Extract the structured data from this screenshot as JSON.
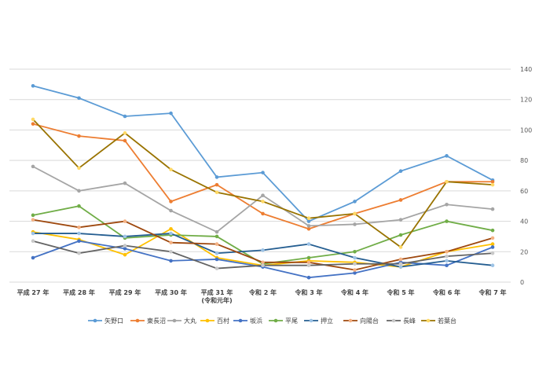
{
  "chart_data": {
    "type": "line",
    "title": "",
    "xlabel": "",
    "ylabel": "",
    "categories": [
      [
        "平成 27 年"
      ],
      [
        "平成 28 年"
      ],
      [
        "平成 29 年"
      ],
      [
        "平成 30 年"
      ],
      [
        "平成 31 年",
        "(令和元年)"
      ],
      [
        "令和 2 年"
      ],
      [
        "令和 3 年"
      ],
      [
        "令和 4 年"
      ],
      [
        "令和 5 年"
      ],
      [
        "令和 6 年"
      ],
      [
        "令和 7 年"
      ]
    ],
    "ylim": [
      0,
      140
    ],
    "yticks": [
      0,
      20,
      40,
      60,
      80,
      100,
      120,
      140
    ],
    "grid": true,
    "legend": "bottom",
    "series": [
      {
        "name": "矢野口",
        "color": "#5B9BD5",
        "marker": "#5B9BD5",
        "values": [
          129,
          121,
          109,
          111,
          69,
          72,
          40,
          53,
          73,
          83,
          67
        ]
      },
      {
        "name": "東長沼",
        "color": "#ED7D31",
        "marker": "#ED7D31",
        "values": [
          104,
          96,
          93,
          53,
          64,
          45,
          35,
          45,
          54,
          66,
          66
        ]
      },
      {
        "name": "大丸",
        "color": "#A5A5A5",
        "marker": "#A5A5A5",
        "values": [
          76,
          60,
          65,
          47,
          33,
          57,
          37,
          38,
          41,
          51,
          48
        ]
      },
      {
        "name": "百村",
        "color": "#FFC000",
        "marker": "#FFC000",
        "values": [
          33,
          28,
          18,
          35,
          16,
          11,
          14,
          13,
          10,
          20,
          25
        ]
      },
      {
        "name": "坂浜",
        "color": "#4472C4",
        "marker": "#4472C4",
        "values": [
          16,
          27,
          22,
          14,
          15,
          10,
          3,
          6,
          13,
          11,
          23
        ]
      },
      {
        "name": "平尾",
        "color": "#70AD47",
        "marker": "#70AD47",
        "values": [
          44,
          50,
          29,
          31,
          30,
          12,
          16,
          20,
          31,
          40,
          34
        ]
      },
      {
        "name": "押立",
        "color": "#255E91",
        "marker": "#9DC3E6",
        "values": [
          32,
          32,
          30,
          32,
          19,
          21,
          25,
          16,
          10,
          14,
          11
        ]
      },
      {
        "name": "向陽台",
        "color": "#9E480E",
        "marker": "#F4B183",
        "values": [
          41,
          36,
          40,
          26,
          25,
          13,
          13,
          8,
          15,
          20,
          29
        ]
      },
      {
        "name": "長峰",
        "color": "#636363",
        "marker": "#C9C9C9",
        "values": [
          27,
          19,
          24,
          20,
          9,
          11,
          11,
          12,
          12,
          17,
          19
        ]
      },
      {
        "name": "若葉台",
        "color": "#997300",
        "marker": "#FFD966",
        "values": [
          107,
          75,
          98,
          74,
          59,
          53,
          42,
          45,
          23,
          66,
          64
        ]
      }
    ]
  }
}
